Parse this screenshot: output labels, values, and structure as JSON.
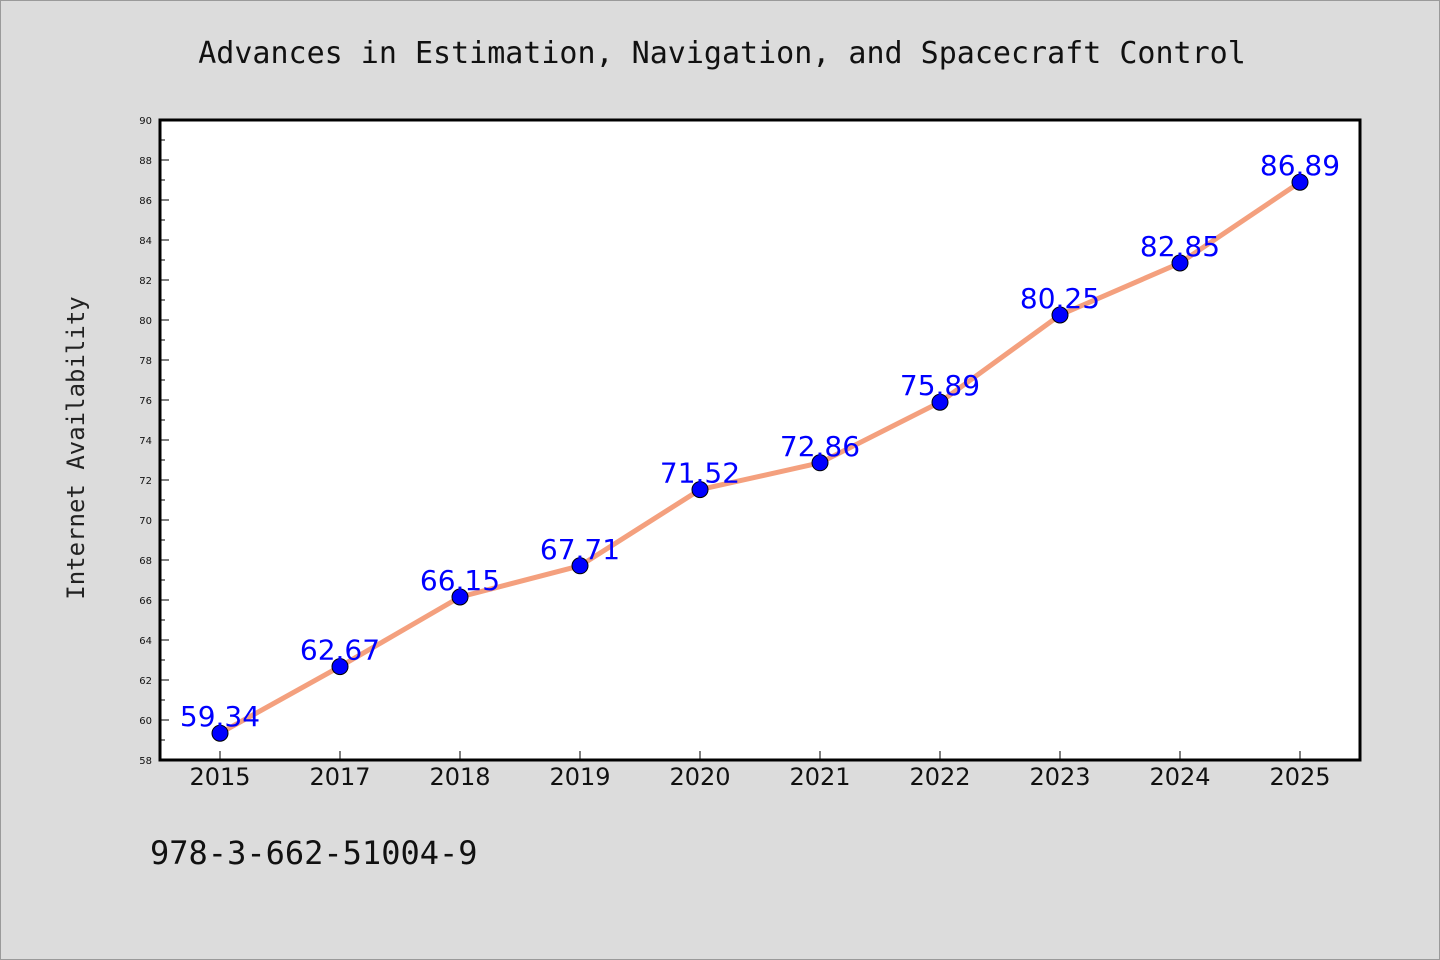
{
  "chart_data": {
    "type": "line",
    "title": "Advances in Estimation, Navigation, and Spacecraft Control",
    "xlabel": "",
    "ylabel": "Internet Availability",
    "categories": [
      "2015",
      "2017",
      "2018",
      "2019",
      "2020",
      "2021",
      "2022",
      "2023",
      "2024",
      "2025"
    ],
    "series": [
      {
        "values": [
          59.34,
          62.67,
          66.15,
          67.71,
          71.52,
          72.86,
          75.89,
          80.25,
          82.85,
          86.89
        ],
        "data_labels": [
          "59.34",
          "62.67",
          "66.15",
          "67.71",
          "71.52",
          "72.86",
          "75.89",
          "80.25",
          "82.85",
          "86.89"
        ]
      }
    ],
    "ylim": [
      58,
      90
    ],
    "yticks": [
      "58",
      "60",
      "62",
      "64",
      "66",
      "68",
      "70",
      "72",
      "74",
      "76",
      "78",
      "80",
      "82",
      "84",
      "86",
      "88",
      "90"
    ],
    "grid": false,
    "legend": "none",
    "colors": {
      "line": "#f4a07e",
      "marker": "#0000ff",
      "label": "#0000ff",
      "background": "#dcdcdc",
      "plot_bg": "#ffffff"
    }
  },
  "caption": "978-3-662-51004-9"
}
